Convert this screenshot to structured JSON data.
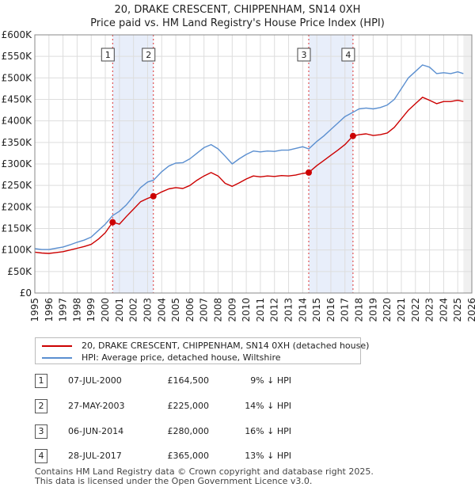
{
  "chart_data": {
    "type": "line",
    "title": "20, DRAKE CRESCENT, CHIPPENHAM, SN14 0XH",
    "subtitle": "Price paid vs. HM Land Registry's House Price Index (HPI)",
    "xlim": [
      1995,
      2026
    ],
    "ylim": [
      0,
      600000
    ],
    "yticks": [
      0,
      50000,
      100000,
      150000,
      200000,
      250000,
      300000,
      350000,
      400000,
      450000,
      500000,
      550000,
      600000
    ],
    "ytick_labels": [
      "£0",
      "£50K",
      "£100K",
      "£150K",
      "£200K",
      "£250K",
      "£300K",
      "£350K",
      "£400K",
      "£450K",
      "£500K",
      "£550K",
      "£600K"
    ],
    "xticks": [
      1995,
      1996,
      1997,
      1998,
      1999,
      2000,
      2001,
      2002,
      2003,
      2004,
      2005,
      2006,
      2007,
      2008,
      2009,
      2010,
      2011,
      2012,
      2013,
      2014,
      2015,
      2016,
      2017,
      2018,
      2019,
      2020,
      2021,
      2022,
      2023,
      2024,
      2025,
      2026
    ],
    "grid": true,
    "series": [
      {
        "name": "20, DRAKE CRESCENT, CHIPPENHAM, SN14 0XH (detached house)",
        "color": "#cc0000",
        "points": [
          [
            1995.0,
            95000
          ],
          [
            1995.5,
            93000
          ],
          [
            1996.0,
            92000
          ],
          [
            1996.5,
            94000
          ],
          [
            1997.0,
            96000
          ],
          [
            1997.5,
            100000
          ],
          [
            1998.0,
            104000
          ],
          [
            1998.5,
            108000
          ],
          [
            1999.0,
            113000
          ],
          [
            1999.5,
            125000
          ],
          [
            2000.0,
            140000
          ],
          [
            2000.52,
            164500
          ],
          [
            2001.0,
            160000
          ],
          [
            2001.5,
            178000
          ],
          [
            2002.0,
            195000
          ],
          [
            2002.5,
            212000
          ],
          [
            2003.0,
            220000
          ],
          [
            2003.41,
            225000
          ],
          [
            2004.0,
            235000
          ],
          [
            2004.5,
            242000
          ],
          [
            2005.0,
            245000
          ],
          [
            2005.5,
            243000
          ],
          [
            2006.0,
            250000
          ],
          [
            2006.5,
            262000
          ],
          [
            2007.0,
            272000
          ],
          [
            2007.5,
            280000
          ],
          [
            2008.0,
            272000
          ],
          [
            2008.5,
            255000
          ],
          [
            2009.0,
            248000
          ],
          [
            2009.5,
            256000
          ],
          [
            2010.0,
            265000
          ],
          [
            2010.5,
            272000
          ],
          [
            2011.0,
            270000
          ],
          [
            2011.5,
            272000
          ],
          [
            2012.0,
            271000
          ],
          [
            2012.5,
            273000
          ],
          [
            2013.0,
            272000
          ],
          [
            2013.5,
            274000
          ],
          [
            2014.0,
            278000
          ],
          [
            2014.43,
            280000
          ],
          [
            2015.0,
            296000
          ],
          [
            2015.5,
            308000
          ],
          [
            2016.0,
            320000
          ],
          [
            2016.5,
            332000
          ],
          [
            2017.0,
            345000
          ],
          [
            2017.57,
            365000
          ],
          [
            2018.0,
            368000
          ],
          [
            2018.5,
            370000
          ],
          [
            2019.0,
            366000
          ],
          [
            2019.5,
            368000
          ],
          [
            2020.0,
            372000
          ],
          [
            2020.5,
            385000
          ],
          [
            2021.0,
            405000
          ],
          [
            2021.5,
            425000
          ],
          [
            2022.0,
            440000
          ],
          [
            2022.5,
            455000
          ],
          [
            2023.0,
            448000
          ],
          [
            2023.5,
            440000
          ],
          [
            2024.0,
            445000
          ],
          [
            2024.5,
            445000
          ],
          [
            2025.0,
            448000
          ],
          [
            2025.4,
            445000
          ]
        ]
      },
      {
        "name": "HPI: Average price, detached house, Wiltshire",
        "color": "#5b8fd0",
        "points": [
          [
            1995.0,
            103000
          ],
          [
            1995.5,
            101000
          ],
          [
            1996.0,
            101000
          ],
          [
            1996.5,
            104000
          ],
          [
            1997.0,
            107000
          ],
          [
            1997.5,
            112000
          ],
          [
            1998.0,
            118000
          ],
          [
            1998.5,
            123000
          ],
          [
            1999.0,
            130000
          ],
          [
            1999.5,
            145000
          ],
          [
            2000.0,
            160000
          ],
          [
            2000.52,
            180000
          ],
          [
            2001.0,
            190000
          ],
          [
            2001.5,
            205000
          ],
          [
            2002.0,
            225000
          ],
          [
            2002.5,
            245000
          ],
          [
            2003.0,
            258000
          ],
          [
            2003.41,
            262000
          ],
          [
            2004.0,
            282000
          ],
          [
            2004.5,
            295000
          ],
          [
            2005.0,
            302000
          ],
          [
            2005.5,
            303000
          ],
          [
            2006.0,
            312000
          ],
          [
            2006.5,
            325000
          ],
          [
            2007.0,
            338000
          ],
          [
            2007.5,
            345000
          ],
          [
            2008.0,
            335000
          ],
          [
            2008.5,
            318000
          ],
          [
            2009.0,
            300000
          ],
          [
            2009.5,
            312000
          ],
          [
            2010.0,
            322000
          ],
          [
            2010.5,
            330000
          ],
          [
            2011.0,
            328000
          ],
          [
            2011.5,
            330000
          ],
          [
            2012.0,
            329000
          ],
          [
            2012.5,
            332000
          ],
          [
            2013.0,
            332000
          ],
          [
            2013.5,
            336000
          ],
          [
            2014.0,
            340000
          ],
          [
            2014.43,
            335000
          ],
          [
            2015.0,
            352000
          ],
          [
            2015.5,
            365000
          ],
          [
            2016.0,
            380000
          ],
          [
            2016.5,
            395000
          ],
          [
            2017.0,
            410000
          ],
          [
            2017.57,
            420000
          ],
          [
            2018.0,
            428000
          ],
          [
            2018.5,
            430000
          ],
          [
            2019.0,
            428000
          ],
          [
            2019.5,
            431000
          ],
          [
            2020.0,
            437000
          ],
          [
            2020.5,
            450000
          ],
          [
            2021.0,
            475000
          ],
          [
            2021.5,
            500000
          ],
          [
            2022.0,
            515000
          ],
          [
            2022.5,
            530000
          ],
          [
            2023.0,
            525000
          ],
          [
            2023.5,
            510000
          ],
          [
            2024.0,
            512000
          ],
          [
            2024.5,
            510000
          ],
          [
            2025.0,
            514000
          ],
          [
            2025.4,
            510000
          ]
        ]
      }
    ],
    "sales": [
      {
        "n": "1",
        "x": 2000.52,
        "y": 164500
      },
      {
        "n": "2",
        "x": 2003.41,
        "y": 225000
      },
      {
        "n": "3",
        "x": 2014.43,
        "y": 280000
      },
      {
        "n": "4",
        "x": 2017.57,
        "y": 365000
      }
    ],
    "shaded_ranges": [
      [
        2000.52,
        2003.41
      ],
      [
        2014.43,
        2017.57
      ]
    ],
    "forecast_from": 2025.4
  },
  "legend": {
    "items": [
      {
        "label": "20, DRAKE CRESCENT, CHIPPENHAM, SN14 0XH (detached house)",
        "color": "#cc0000"
      },
      {
        "label": "HPI: Average price, detached house, Wiltshire",
        "color": "#5b8fd0"
      }
    ]
  },
  "table": {
    "rows": [
      {
        "n": "1",
        "date": "07-JUL-2000",
        "price": "£164,500",
        "hpi": "9% ↓ HPI"
      },
      {
        "n": "2",
        "date": "27-MAY-2003",
        "price": "£225,000",
        "hpi": "14% ↓ HPI"
      },
      {
        "n": "3",
        "date": "06-JUN-2014",
        "price": "£280,000",
        "hpi": "16% ↓ HPI"
      },
      {
        "n": "4",
        "date": "28-JUL-2017",
        "price": "£365,000",
        "hpi": "13% ↓ HPI"
      }
    ]
  },
  "footer": {
    "line1": "Contains HM Land Registry data © Crown copyright and database right 2025.",
    "line2": "This data is licensed under the Open Government Licence v3.0."
  }
}
